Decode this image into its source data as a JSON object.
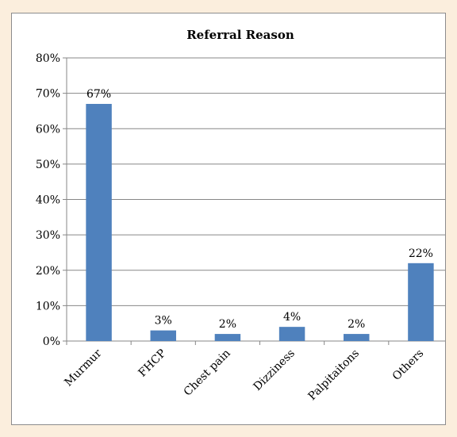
{
  "chart_data": {
    "type": "bar",
    "title": "Referral Reason",
    "categories": [
      "Murmur",
      "FHCP",
      "Chest pain",
      "Dizziness",
      "Palpitaitons",
      "Others"
    ],
    "values": [
      67,
      3,
      2,
      4,
      2,
      22
    ],
    "value_labels": [
      "67%",
      "3%",
      "2%",
      "4%",
      "2%",
      "22%"
    ],
    "ylim": [
      0,
      80
    ],
    "yticks": [
      0,
      10,
      20,
      30,
      40,
      50,
      60,
      70,
      80
    ],
    "ytick_labels": [
      "0%",
      "10%",
      "20%",
      "30%",
      "40%",
      "50%",
      "60%",
      "70%",
      "80%"
    ],
    "grid": true,
    "legend": "none",
    "bar_color": "#4f81bd"
  }
}
